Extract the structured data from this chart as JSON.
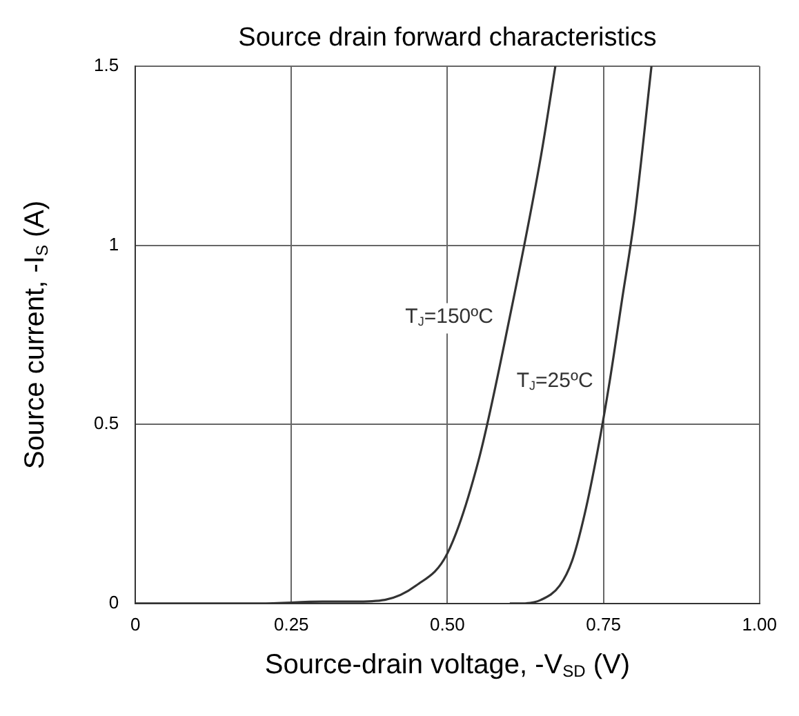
{
  "chart_data": {
    "type": "line",
    "title": "Source drain forward characteristics",
    "xlabel": "Source-drain voltage, -V$_{SD}$ (V)",
    "ylabel": "Source current, -I$_{S}$ (A)",
    "xlim": [
      0,
      1
    ],
    "xticks": [
      0,
      {
        "value": 0.25,
        "label": "0.25"
      },
      {
        "value": 0.5,
        "label": "0.50"
      },
      {
        "value": 0.75,
        "label": "0.75"
      },
      {
        "value": 1,
        "label": "1.00"
      }
    ],
    "ylim": [
      0,
      1.5
    ],
    "yticks": [
      0,
      0.5,
      1,
      1.5
    ],
    "grid": true,
    "legend": false,
    "marker": "none",
    "line_style": "solid",
    "series": [
      {
        "name": "T$_{J}$=150ºC",
        "color": "#333333",
        "x": [
          0,
          0.2,
          0.3,
          0.35,
          0.4,
          0.45,
          0.5,
          0.55,
          0.6,
          0.65,
          0.673
        ],
        "values": [
          0,
          0,
          0.005,
          0.005,
          0.01,
          0.05,
          0.14,
          0.4,
          0.8,
          1.25,
          1.5
        ]
      },
      {
        "name": "T$_{J}$=25ºC",
        "color": "#333333",
        "x": [
          0.6,
          0.62,
          0.65,
          0.68,
          0.7,
          0.72,
          0.74,
          0.76,
          0.78,
          0.8,
          0.827
        ],
        "values": [
          0,
          0,
          0.01,
          0.05,
          0.12,
          0.25,
          0.42,
          0.62,
          0.85,
          1.08,
          1.5
        ]
      }
    ]
  }
}
